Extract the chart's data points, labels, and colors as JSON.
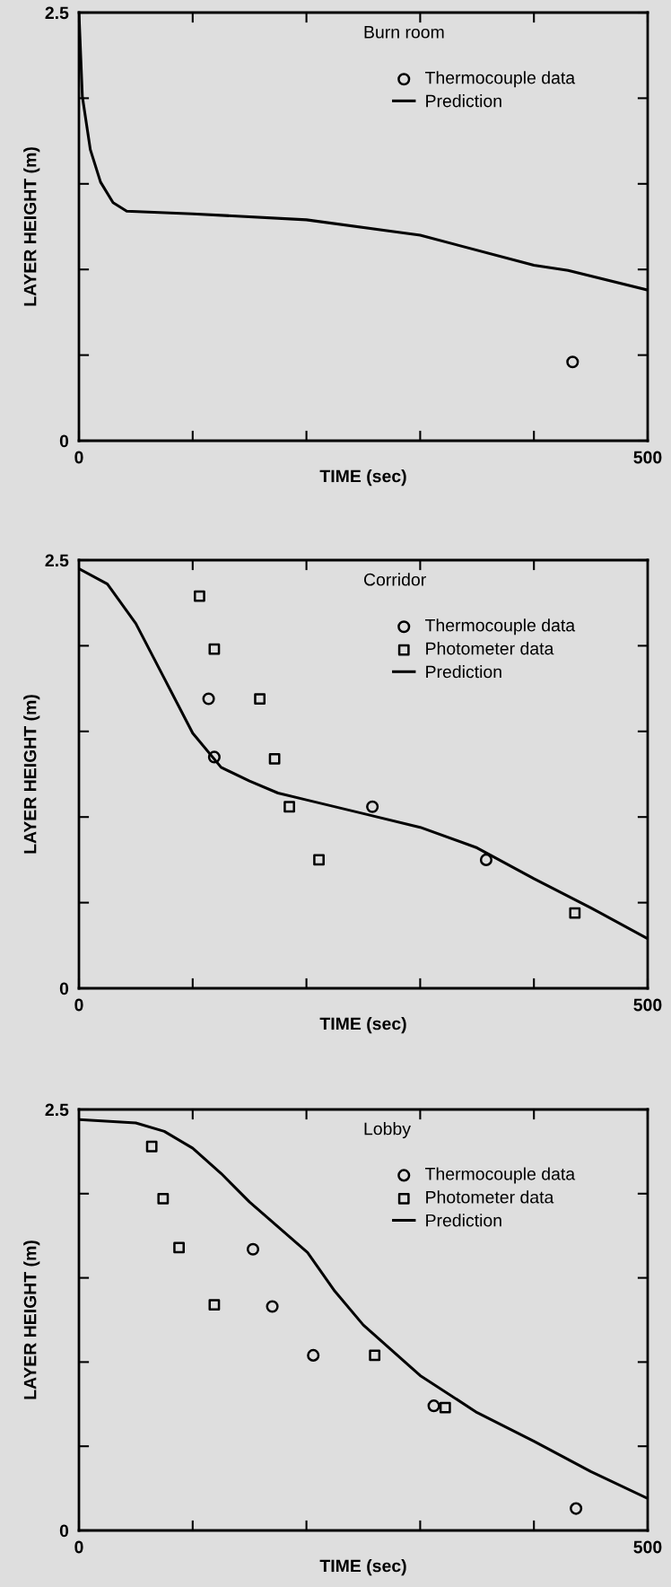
{
  "chart_data": [
    {
      "type": "scatter",
      "title": "Burn room",
      "xlabel": "TIME (sec)",
      "ylabel": "LAYER HEIGHT (m)",
      "xlim": [
        0,
        500
      ],
      "ylim": [
        0,
        2.5
      ],
      "xticks": [
        0,
        {
          "value": 100,
          "label": null
        },
        {
          "value": 200,
          "label": null
        },
        {
          "value": 300,
          "label": null
        },
        {
          "value": 400,
          "label": null
        },
        500
      ],
      "yticks": [
        0,
        {
          "value": 0.5,
          "label": null
        },
        {
          "value": 1,
          "label": null
        },
        {
          "value": 1.5,
          "label": null
        },
        {
          "value": 2,
          "label": null
        },
        2.5
      ],
      "grid": false,
      "legend": "top right",
      "series": [
        {
          "name": "Thermocouple data",
          "marker": "circle",
          "color": "#000000",
          "x": [
            434
          ],
          "values": [
            0.46
          ]
        },
        {
          "name": "Prediction",
          "type": "line",
          "marker": "none",
          "color": "#000000",
          "x": [
            0,
            3,
            10,
            19,
            30,
            42,
            100,
            200,
            300,
            400,
            430,
            500
          ],
          "values": [
            2.5,
            2.01,
            1.7,
            1.51,
            1.39,
            1.34,
            1.325,
            1.29,
            1.2,
            1.025,
            0.995,
            0.88
          ]
        }
      ]
    },
    {
      "type": "scatter",
      "title": "Corridor",
      "xlabel": "TIME (sec)",
      "ylabel": "LAYER HEIGHT (m)",
      "xlim": [
        0,
        500
      ],
      "ylim": [
        0,
        2.5
      ],
      "xticks": [
        0,
        {
          "value": 100,
          "label": null
        },
        {
          "value": 200,
          "label": null
        },
        {
          "value": 300,
          "label": null
        },
        {
          "value": 400,
          "label": null
        },
        500
      ],
      "yticks": [
        0,
        {
          "value": 0.5,
          "label": null
        },
        {
          "value": 1,
          "label": null
        },
        {
          "value": 1.5,
          "label": null
        },
        {
          "value": 2,
          "label": null
        },
        2.5
      ],
      "grid": false,
      "legend": "top right",
      "series": [
        {
          "name": "Thermocouple data",
          "marker": "circle",
          "color": "#000000",
          "x": [
            114,
            119,
            258,
            358
          ],
          "values": [
            1.69,
            1.35,
            1.06,
            0.75
          ]
        },
        {
          "name": "Photometer data",
          "marker": "square",
          "color": "#000000",
          "x": [
            106,
            119,
            159,
            172,
            185,
            211,
            436
          ],
          "values": [
            2.29,
            1.98,
            1.69,
            1.34,
            1.06,
            0.75,
            0.44
          ]
        },
        {
          "name": "Prediction",
          "type": "line",
          "marker": "none",
          "color": "#000000",
          "x": [
            0,
            25,
            50,
            75,
            100,
            125,
            150,
            175,
            200,
            250,
            300,
            350,
            400,
            450,
            500
          ],
          "values": [
            2.45,
            2.36,
            2.13,
            1.81,
            1.49,
            1.29,
            1.21,
            1.14,
            1.1,
            1.02,
            0.94,
            0.82,
            0.64,
            0.47,
            0.29
          ]
        }
      ]
    },
    {
      "type": "scatter",
      "title": "Lobby",
      "xlabel": "TIME (sec)",
      "ylabel": "LAYER HEIGHT (m)",
      "xlim": [
        0,
        500
      ],
      "ylim": [
        0,
        2.5
      ],
      "xticks": [
        0,
        {
          "value": 100,
          "label": null
        },
        {
          "value": 200,
          "label": null
        },
        {
          "value": 300,
          "label": null
        },
        {
          "value": 400,
          "label": null
        },
        500
      ],
      "yticks": [
        0,
        {
          "value": 0.5,
          "label": null
        },
        {
          "value": 1,
          "label": null
        },
        {
          "value": 1.5,
          "label": null
        },
        {
          "value": 2,
          "label": null
        },
        2.5
      ],
      "grid": false,
      "legend": "top right",
      "series": [
        {
          "name": "Thermocouple data",
          "marker": "circle",
          "color": "#000000",
          "x": [
            153,
            170,
            206,
            312,
            437
          ],
          "values": [
            1.67,
            1.33,
            1.04,
            0.74,
            0.13
          ]
        },
        {
          "name": "Photometer data",
          "marker": "square",
          "color": "#000000",
          "x": [
            64,
            74,
            88,
            119,
            260,
            322
          ],
          "values": [
            2.28,
            1.97,
            1.68,
            1.34,
            1.04,
            0.73
          ]
        },
        {
          "name": "Prediction",
          "type": "line",
          "marker": "none",
          "color": "#000000",
          "x": [
            0,
            50,
            75,
            100,
            125,
            150,
            201,
            225,
            250,
            300,
            350,
            400,
            450,
            500
          ],
          "values": [
            2.44,
            2.42,
            2.37,
            2.27,
            2.12,
            1.95,
            1.65,
            1.42,
            1.22,
            0.92,
            0.7,
            0.53,
            0.35,
            0.19
          ]
        }
      ]
    }
  ]
}
